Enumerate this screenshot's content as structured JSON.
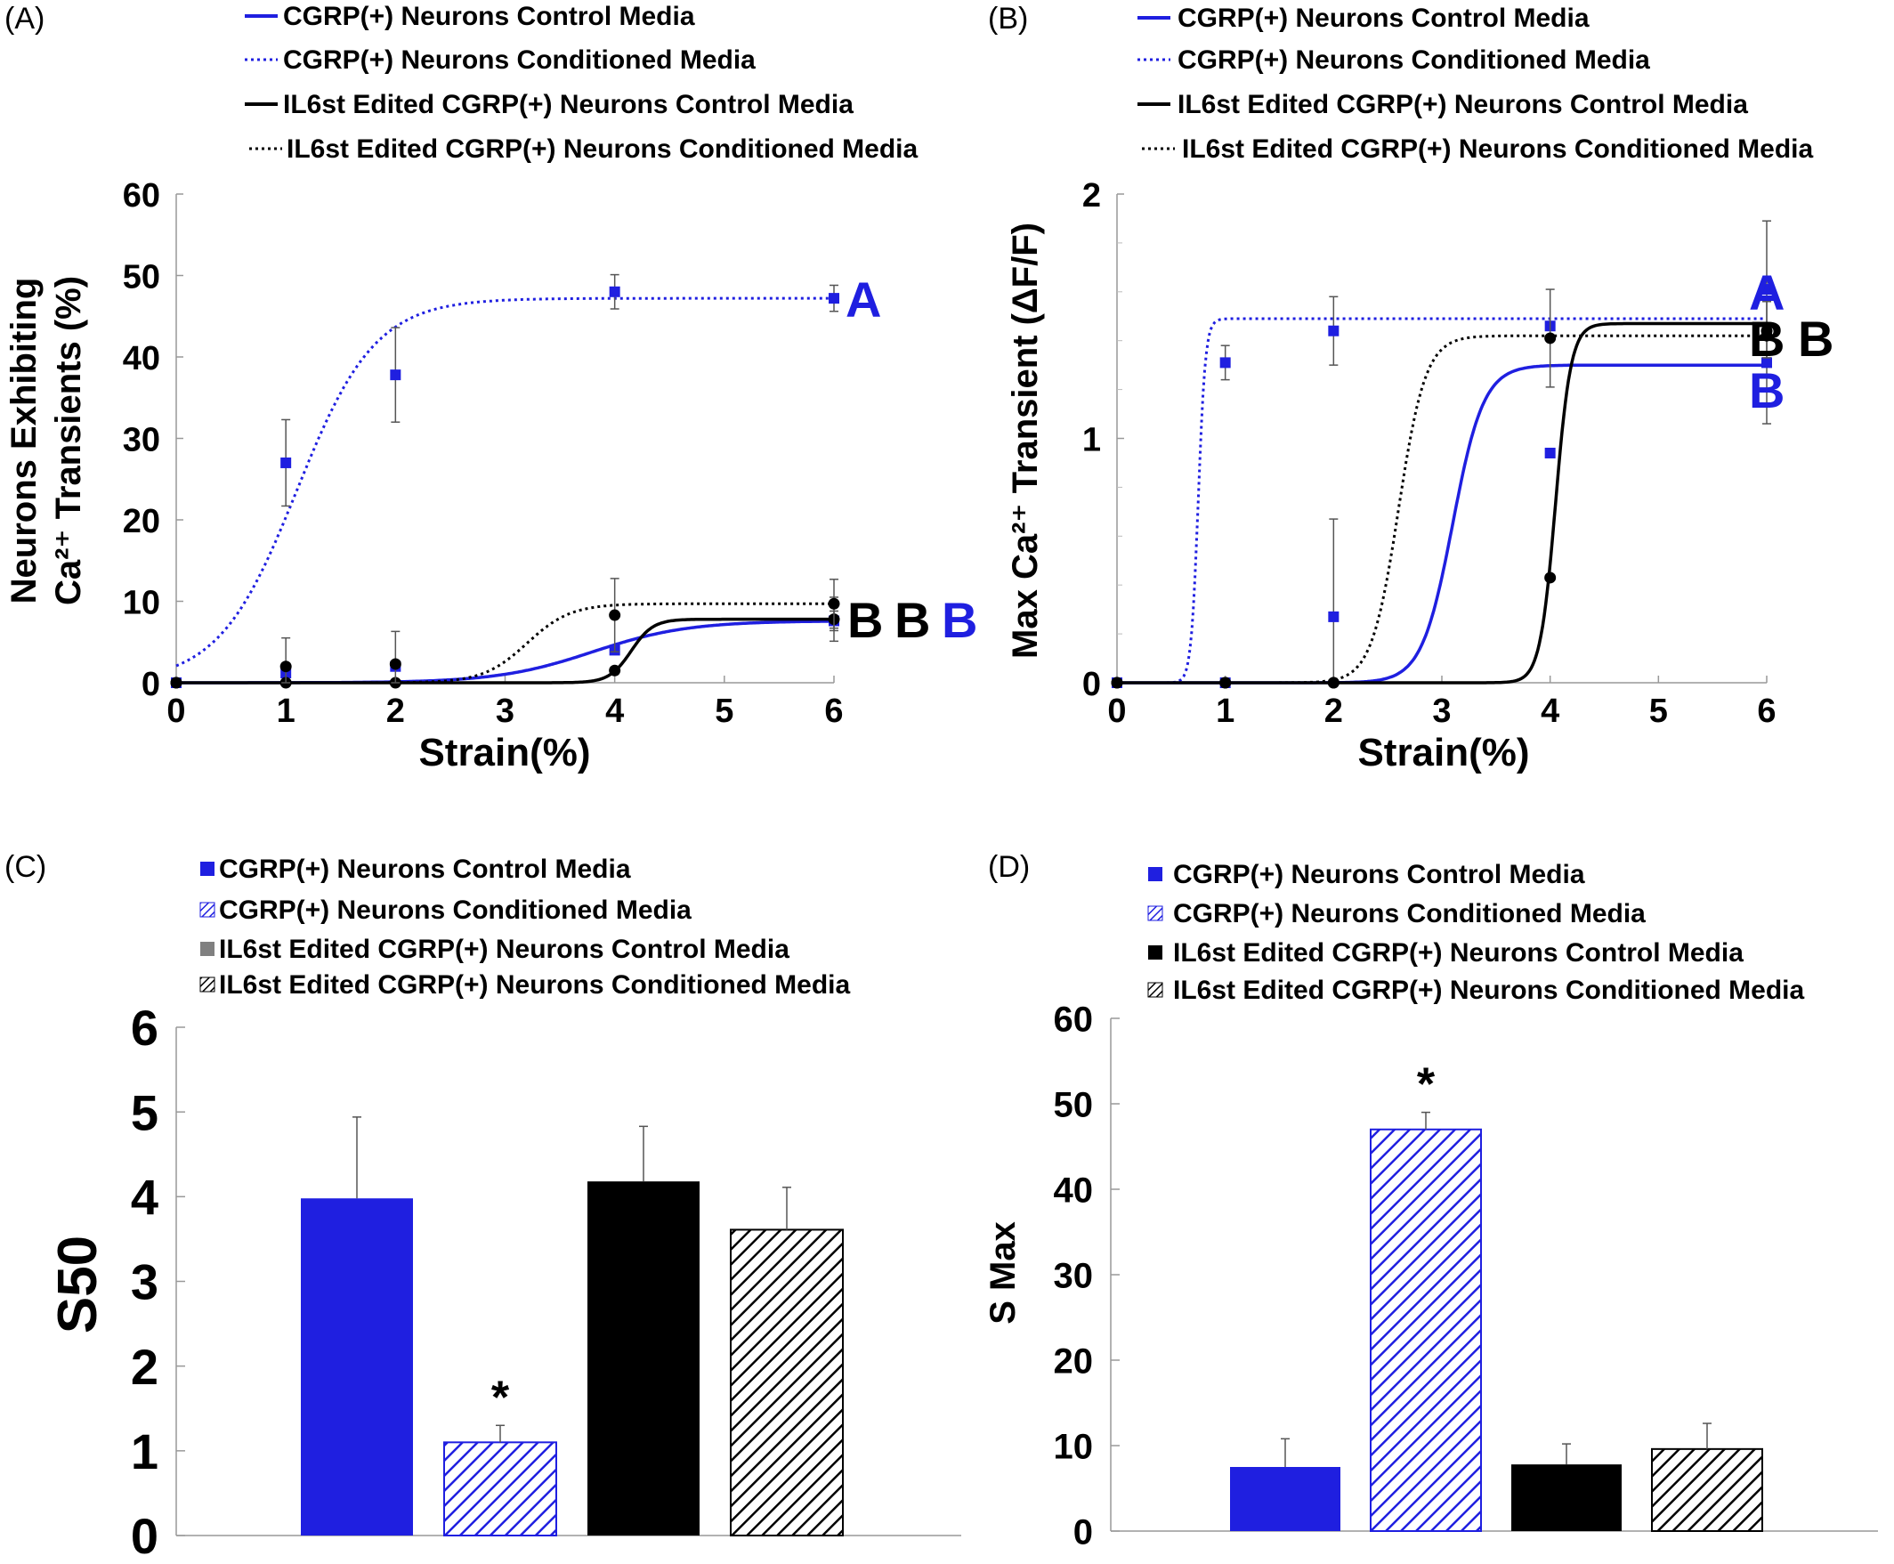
{
  "colors": {
    "blue": "#1f1fe0",
    "black": "#000000",
    "grey": "#808080",
    "errorbar": "#555555"
  },
  "chart_data": [
    {
      "panel": "(A)",
      "type": "scatter",
      "xlabel": "Strain(%)",
      "ylabel_line1": "Neurons Exhibiting",
      "ylabel_line2": "Ca²⁺ Transients (%)",
      "xlim": [
        0,
        6
      ],
      "ylim": [
        0,
        60
      ],
      "xticks": [
        0,
        1,
        2,
        3,
        4,
        5,
        6
      ],
      "yticks": [
        0,
        10,
        20,
        30,
        40,
        50,
        60
      ],
      "legend": [
        "CGRP(+) Neurons Control Media",
        "CGRP(+) Neurons Conditioned Media",
        "IL6st Edited CGRP(+) Neurons Control Media",
        "IL6st Edited CGRP(+) Neurons Conditioned Media"
      ],
      "series": [
        {
          "style": "solid",
          "color": "blue",
          "marker": "square",
          "x": [
            0,
            1,
            2,
            4,
            6
          ],
          "y": [
            0,
            1.2,
            2.0,
            4.0,
            7.6
          ],
          "err": [
            0,
            0,
            0,
            0,
            1.2
          ],
          "fit": {
            "kind": "sigmoid",
            "top": 7.6,
            "mid": 3.8,
            "k": 2.3
          },
          "letter": "B"
        },
        {
          "style": "dotted",
          "color": "blue",
          "marker": "square",
          "x": [
            0,
            1,
            2,
            4,
            6
          ],
          "y": [
            0,
            27,
            37.8,
            48,
            47.2
          ],
          "err": [
            0,
            5.3,
            5.8,
            2.1,
            1.6
          ],
          "fit": {
            "kind": "sigmoid",
            "top": 47.2,
            "mid": 1.1,
            "k": 2.8
          },
          "letter": "A"
        },
        {
          "style": "solid",
          "color": "black",
          "marker": "circle",
          "x": [
            0,
            1,
            2,
            4,
            6
          ],
          "y": [
            0,
            0,
            0,
            1.5,
            7.8
          ],
          "err": [
            0,
            0,
            0,
            0,
            2.7
          ],
          "fit": {
            "kind": "sigmoid",
            "top": 7.8,
            "mid": 4.15,
            "k": 10
          },
          "letter": "B"
        },
        {
          "style": "dotted",
          "color": "black",
          "marker": "circle",
          "x": [
            0,
            1,
            2,
            4,
            6
          ],
          "y": [
            0,
            2.0,
            2.3,
            8.3,
            9.7
          ],
          "err": [
            0,
            3.5,
            4.0,
            4.5,
            3.0
          ],
          "fit": {
            "kind": "sigmoid",
            "top": 9.7,
            "mid": 3.2,
            "k": 5
          },
          "letter": "B"
        }
      ]
    },
    {
      "panel": "(B)",
      "type": "scatter",
      "xlabel": "Strain(%)",
      "ylabel": "Max Ca²⁺ Transient (ΔF/F)",
      "xlim": [
        0,
        6
      ],
      "ylim": [
        0,
        2
      ],
      "xticks": [
        0,
        1,
        2,
        3,
        4,
        5,
        6
      ],
      "yticks": [
        0,
        1,
        2
      ],
      "legend": [
        "CGRP(+) Neurons Control Media",
        "CGRP(+) Neurons Conditioned Media",
        "IL6st Edited CGRP(+) Neurons Control Media",
        "IL6st Edited CGRP(+) Neurons Conditioned Media"
      ],
      "series": [
        {
          "style": "solid",
          "color": "blue",
          "marker": "square",
          "x": [
            0,
            1,
            2,
            4,
            6
          ],
          "y": [
            0,
            0,
            0.27,
            0.94,
            1.31
          ],
          "err": [
            0,
            0,
            0.4,
            0,
            0.25
          ],
          "fit": {
            "kind": "sigmoid",
            "top": 1.3,
            "mid": 3.1,
            "k": 7
          },
          "letter": "B"
        },
        {
          "style": "dotted",
          "color": "blue",
          "marker": "square",
          "x": [
            0,
            1,
            2,
            4,
            6
          ],
          "y": [
            0,
            1.31,
            1.44,
            1.46,
            1.61
          ],
          "err": [
            0,
            0.07,
            0.14,
            0,
            0.28
          ],
          "fit": {
            "kind": "sigmoid",
            "top": 1.49,
            "mid": 0.75,
            "k": 30
          },
          "letter": "A"
        },
        {
          "style": "solid",
          "color": "black",
          "marker": "circle",
          "x": [
            0,
            1,
            2,
            4,
            6
          ],
          "y": [
            0,
            0,
            0,
            0.43,
            1.42
          ],
          "err": [
            0,
            0,
            0,
            0,
            0
          ],
          "fit": {
            "kind": "sigmoid",
            "top": 1.47,
            "mid": 4.05,
            "k": 14
          },
          "letter": "B"
        },
        {
          "style": "dotted",
          "color": "black",
          "marker": "circle",
          "x": [
            0,
            1,
            2,
            4,
            6
          ],
          "y": [
            0,
            0,
            0,
            1.41,
            1.44
          ],
          "err": [
            0,
            0,
            0,
            0.2,
            0
          ],
          "fit": {
            "kind": "sigmoid",
            "top": 1.42,
            "mid": 2.6,
            "k": 8
          },
          "letter": "B"
        }
      ]
    },
    {
      "panel": "(C)",
      "type": "bar",
      "ylabel": "S50",
      "ylim": [
        0,
        6
      ],
      "yticks": [
        0,
        1,
        2,
        3,
        4,
        5,
        6
      ],
      "legend": [
        "CGRP(+) Neurons Control Media",
        "CGRP(+) Neurons Conditioned Media",
        "IL6st Edited CGRP(+) Neurons Control Media",
        "IL6st Edited CGRP(+) Neurons Conditioned Media"
      ],
      "values": [
        3.98,
        1.1,
        4.18,
        3.61
      ],
      "errors": [
        0.96,
        0.2,
        0.65,
        0.5
      ],
      "fills": [
        "blue",
        "blue-hatch",
        "black",
        "black-hatch"
      ],
      "annotations": [
        {
          "bar": 1,
          "text": "*"
        }
      ]
    },
    {
      "panel": "(D)",
      "type": "bar",
      "ylabel": "S Max",
      "ylim": [
        0,
        60
      ],
      "yticks": [
        0,
        10,
        20,
        30,
        40,
        50,
        60
      ],
      "legend": [
        "CGRP(+) Neurons Control Media",
        "CGRP(+) Neurons Conditioned Media",
        "IL6st Edited CGRP(+) Neurons Control Media",
        "IL6st Edited CGRP(+) Neurons Conditioned Media"
      ],
      "values": [
        7.5,
        47.0,
        7.8,
        9.6
      ],
      "errors": [
        3.3,
        2.0,
        2.4,
        3.0
      ],
      "fills": [
        "blue",
        "blue-hatch",
        "black",
        "black-hatch"
      ],
      "annotations": [
        {
          "bar": 1,
          "text": "*"
        }
      ]
    }
  ]
}
